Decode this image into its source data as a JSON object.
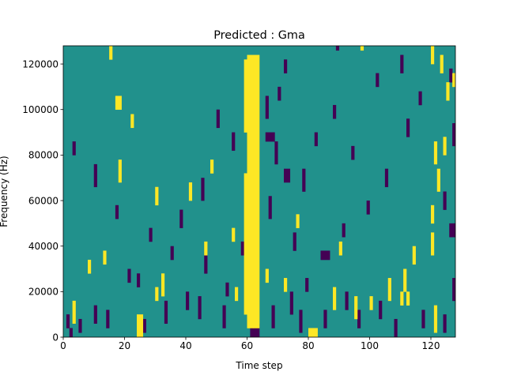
{
  "chart_data": {
    "type": "heatmap",
    "title": "Predicted : Gma",
    "xlabel": "Time step",
    "ylabel": "Frequency (Hz)",
    "xlim": [
      0,
      128
    ],
    "ylim": [
      0,
      128000
    ],
    "x_ticks": [
      0,
      20,
      40,
      60,
      80,
      100,
      120
    ],
    "x_tick_labels": [
      "0",
      "20",
      "40",
      "60",
      "80",
      "100",
      "120"
    ],
    "y_ticks": [
      0,
      20000,
      40000,
      60000,
      80000,
      100000,
      120000
    ],
    "y_tick_labels": [
      "0",
      "20000",
      "40000",
      "60000",
      "80000",
      "100000",
      "120000"
    ],
    "grid": false,
    "legend": "none",
    "colormap": "viridis",
    "colors": {
      "background": "#21918c",
      "low": "#440154",
      "high": "#fde725"
    },
    "n_time_steps": 128,
    "n_freq_bins": 64,
    "freq_bin_width": 2000,
    "high_cells": [
      [
        60,
        2,
        61,
        61
      ],
      [
        62,
        2,
        63,
        61
      ],
      [
        59,
        5,
        59,
        35
      ],
      [
        59,
        45,
        59,
        60
      ],
      [
        3,
        3,
        3,
        7
      ],
      [
        8,
        14,
        8,
        16
      ],
      [
        13,
        16,
        13,
        18
      ],
      [
        24,
        0,
        25,
        4
      ],
      [
        30,
        8,
        30,
        10
      ],
      [
        32,
        9,
        32,
        13
      ],
      [
        46,
        18,
        46,
        20
      ],
      [
        55,
        21,
        55,
        23
      ],
      [
        56,
        8,
        56,
        10
      ],
      [
        66,
        12,
        66,
        14
      ],
      [
        72,
        10,
        72,
        12
      ],
      [
        80,
        0,
        82,
        1
      ],
      [
        88,
        6,
        88,
        10
      ],
      [
        95,
        4,
        95,
        8
      ],
      [
        100,
        6,
        100,
        8
      ],
      [
        106,
        8,
        106,
        12
      ],
      [
        111,
        10,
        111,
        14
      ],
      [
        114,
        16,
        114,
        19
      ],
      [
        120,
        18,
        120,
        22
      ],
      [
        121,
        1,
        121,
        6
      ],
      [
        120,
        25,
        120,
        28
      ],
      [
        122,
        32,
        122,
        36
      ],
      [
        121,
        38,
        121,
        42
      ],
      [
        124,
        40,
        124,
        43
      ],
      [
        125,
        52,
        125,
        55
      ],
      [
        123,
        58,
        123,
        61
      ],
      [
        127,
        55,
        127,
        57
      ],
      [
        110,
        7,
        110,
        9
      ],
      [
        112,
        7,
        112,
        9
      ],
      [
        90,
        18,
        90,
        20
      ],
      [
        76,
        24,
        76,
        26
      ],
      [
        48,
        36,
        48,
        38
      ],
      [
        18,
        34,
        18,
        38
      ],
      [
        17,
        50,
        18,
        52
      ],
      [
        30,
        29,
        30,
        32
      ],
      [
        22,
        46,
        22,
        48
      ],
      [
        15,
        61,
        15,
        63
      ],
      [
        97,
        63,
        97,
        63
      ],
      [
        120,
        60,
        120,
        63
      ],
      [
        41,
        30,
        41,
        33
      ]
    ],
    "low_cells": [
      [
        61,
        0,
        63,
        2
      ],
      [
        1,
        2,
        1,
        4
      ],
      [
        2,
        0,
        2,
        1
      ],
      [
        5,
        1,
        5,
        3
      ],
      [
        10,
        3,
        10,
        6
      ],
      [
        14,
        2,
        14,
        5
      ],
      [
        26,
        1,
        26,
        3
      ],
      [
        33,
        3,
        33,
        7
      ],
      [
        40,
        6,
        40,
        9
      ],
      [
        44,
        4,
        44,
        8
      ],
      [
        52,
        2,
        52,
        6
      ],
      [
        53,
        9,
        53,
        11
      ],
      [
        58,
        18,
        58,
        20
      ],
      [
        68,
        2,
        68,
        6
      ],
      [
        74,
        5,
        74,
        9
      ],
      [
        77,
        1,
        77,
        5
      ],
      [
        79,
        10,
        79,
        12
      ],
      [
        85,
        2,
        85,
        5
      ],
      [
        92,
        6,
        92,
        9
      ],
      [
        96,
        2,
        96,
        5
      ],
      [
        103,
        4,
        103,
        7
      ],
      [
        108,
        0,
        108,
        3
      ],
      [
        117,
        2,
        117,
        5
      ],
      [
        124,
        1,
        124,
        4
      ],
      [
        127,
        8,
        127,
        12
      ],
      [
        126,
        22,
        127,
        24
      ],
      [
        124,
        28,
        124,
        31
      ],
      [
        127,
        42,
        127,
        46
      ],
      [
        126,
        56,
        126,
        58
      ],
      [
        110,
        58,
        110,
        61
      ],
      [
        89,
        63,
        89,
        63
      ],
      [
        72,
        58,
        72,
        60
      ],
      [
        66,
        48,
        66,
        52
      ],
      [
        69,
        38,
        69,
        42
      ],
      [
        67,
        26,
        67,
        30
      ],
      [
        78,
        32,
        78,
        36
      ],
      [
        72,
        34,
        73,
        36
      ],
      [
        66,
        43,
        68,
        44
      ],
      [
        55,
        41,
        55,
        44
      ],
      [
        50,
        46,
        50,
        49
      ],
      [
        45,
        30,
        45,
        34
      ],
      [
        38,
        24,
        38,
        27
      ],
      [
        46,
        14,
        46,
        17
      ],
      [
        28,
        21,
        28,
        23
      ],
      [
        21,
        12,
        21,
        14
      ],
      [
        10,
        33,
        10,
        37
      ],
      [
        3,
        40,
        3,
        42
      ],
      [
        17,
        26,
        17,
        28
      ],
      [
        24,
        11,
        24,
        13
      ],
      [
        35,
        17,
        35,
        19
      ],
      [
        84,
        17,
        86,
        18
      ],
      [
        91,
        22,
        91,
        24
      ],
      [
        94,
        39,
        94,
        41
      ],
      [
        99,
        27,
        99,
        29
      ],
      [
        105,
        33,
        105,
        36
      ],
      [
        112,
        44,
        112,
        47
      ],
      [
        116,
        51,
        116,
        53
      ],
      [
        102,
        55,
        102,
        57
      ],
      [
        88,
        48,
        88,
        50
      ],
      [
        82,
        42,
        82,
        44
      ],
      [
        70,
        52,
        70,
        54
      ],
      [
        75,
        19,
        75,
        22
      ]
    ]
  }
}
